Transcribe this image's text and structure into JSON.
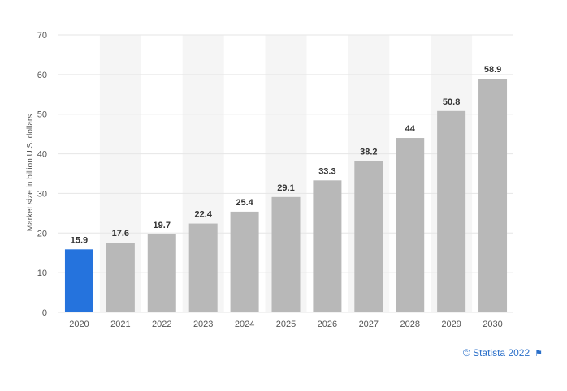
{
  "chart_data": {
    "type": "bar",
    "categories": [
      "2020",
      "2021",
      "2022",
      "2023",
      "2024",
      "2025",
      "2026",
      "2027",
      "2028",
      "2029",
      "2030"
    ],
    "values": [
      15.9,
      17.6,
      19.7,
      22.4,
      25.4,
      29.1,
      33.3,
      38.2,
      44,
      50.8,
      58.9
    ],
    "value_labels": [
      "15.9",
      "17.6",
      "19.7",
      "22.4",
      "25.4",
      "29.1",
      "33.3",
      "38.2",
      "44",
      "50.8",
      "58.9"
    ],
    "ylabel": "Market size in billion U.S. dollars",
    "xlabel": "",
    "ylim": [
      0,
      70
    ],
    "yticks": [
      "0",
      "10",
      "20",
      "30",
      "40",
      "50",
      "60",
      "70"
    ],
    "grid": true,
    "highlight_index": 0,
    "colors": {
      "highlight": "#2573dd",
      "bar": "#b8b8b8",
      "band": "#f5f5f5",
      "grid": "#e6e6e6"
    }
  },
  "credit": {
    "text": "© Statista 2022",
    "icon": "flag-icon"
  }
}
